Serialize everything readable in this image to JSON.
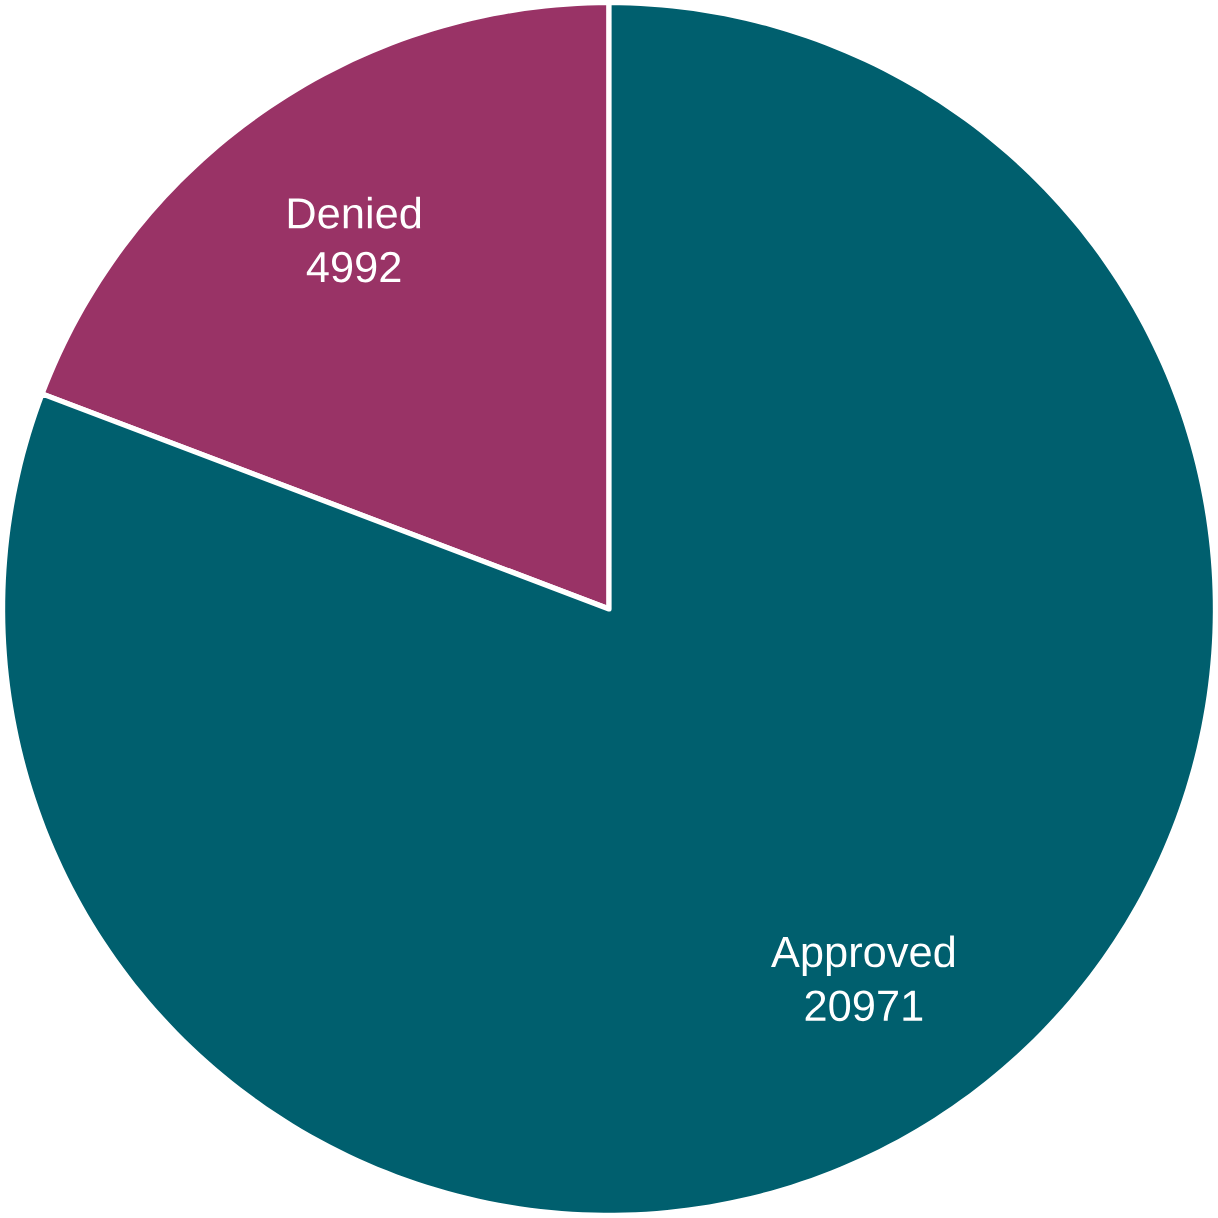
{
  "chart_data": {
    "type": "pie",
    "categories": [
      "Denied",
      "Approved"
    ],
    "values": [
      4992,
      20971
    ],
    "colors": [
      "#993366",
      "#005f6e"
    ],
    "value_labels": [
      "4992",
      "20971"
    ]
  }
}
